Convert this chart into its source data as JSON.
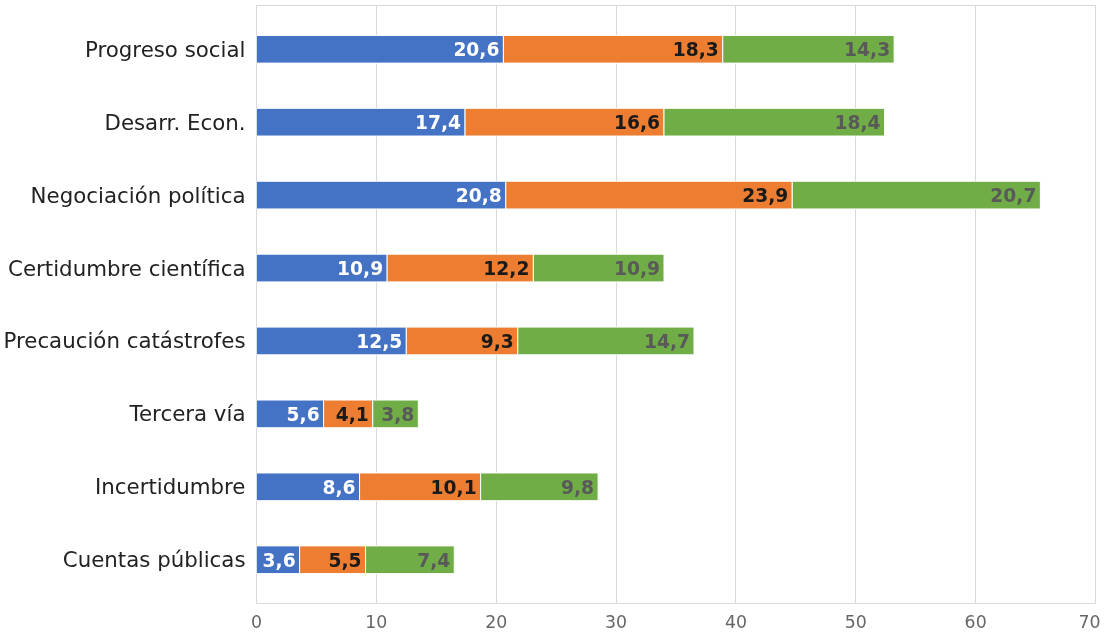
{
  "chart_data": {
    "type": "bar",
    "orientation": "horizontal",
    "stacked": true,
    "grid": "x",
    "categories": [
      "Progreso social",
      "Desarr. Econ.",
      "Negociación política",
      "Certidumbre científica",
      "Precaución catástrofes",
      "Tercera vía",
      "Incertidumbre",
      "Cuentas públicas"
    ],
    "series": [
      {
        "color": "#4472c4",
        "values": [
          20.6,
          17.4,
          20.8,
          10.9,
          12.5,
          5.6,
          8.6,
          3.6
        ],
        "value_labels": [
          "20,6",
          "17,4",
          "20,8",
          "10,9",
          "12,5",
          "5,6",
          "8,6",
          "3,6"
        ]
      },
      {
        "color": "#ed7d31",
        "values": [
          18.3,
          16.6,
          23.9,
          12.2,
          9.3,
          4.1,
          10.1,
          5.5
        ],
        "value_labels": [
          "18,3",
          "16,6",
          "23,9",
          "12,2",
          "9,3",
          "4,1",
          "10,1",
          "5,5"
        ]
      },
      {
        "color": "#70ad47",
        "values": [
          14.3,
          18.4,
          20.7,
          10.9,
          14.7,
          3.8,
          9.8,
          7.4
        ],
        "value_labels": [
          "14,3",
          "18,4",
          "20,7",
          "10,9",
          "14,7",
          "3,8",
          "9,8",
          "7,4"
        ]
      }
    ],
    "xlim": [
      0,
      70
    ],
    "xticks": [
      0,
      10,
      20,
      30,
      40,
      50,
      60,
      70
    ]
  }
}
